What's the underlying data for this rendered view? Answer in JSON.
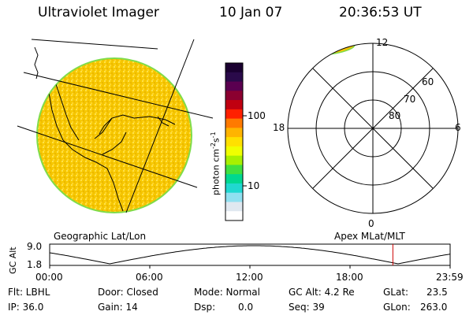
{
  "header": {
    "title": "Ultraviolet Imager",
    "date": "10 Jan 07",
    "time": "20:36:53 UT"
  },
  "colorbar": {
    "unit_label": "photon cm",
    "unit_sup1": "-2",
    "unit_mid": "s",
    "unit_sup2": "-1",
    "ticks": [
      "100",
      "10"
    ],
    "colors": [
      "#1a0030",
      "#2a0a4a",
      "#5a0050",
      "#8b0030",
      "#c00010",
      "#ff2000",
      "#ff7a00",
      "#ffb400",
      "#ffe000",
      "#f0ff00",
      "#a8f000",
      "#40e040",
      "#00d890",
      "#20d8d0",
      "#90e0f0",
      "#e0e8f0",
      "#ffffff"
    ]
  },
  "left_panel": {
    "label": "Geographic Lat/Lon",
    "image_color": "#f5c400"
  },
  "right_panel": {
    "label": "Apex MLat/MLT",
    "mlt_labels": {
      "top": "12",
      "left": "18",
      "right": "6",
      "bottom": "0"
    },
    "lat_labels": [
      "60",
      "70",
      "80"
    ]
  },
  "timeline": {
    "ylabel_top": "GC",
    "ylabel_bottom": "Alt",
    "ymax": "9.0",
    "ymin": "1.8",
    "ticks": [
      "00:00",
      "06:00",
      "12:00",
      "18:00",
      "23:59"
    ],
    "current_time_fraction": 0.857,
    "marker_color": "#cc0000"
  },
  "footer": {
    "filter": "Flt: LBHL",
    "ip": "IP: 36.0",
    "door": "Door: Closed",
    "gain": "Gain: 14",
    "mode": "Mode: Normal",
    "dsp_label": "Dsp:",
    "dsp_value": "0.0",
    "gc_alt": "GC Alt: 4.2 Re",
    "seq": "Seq: 39",
    "glat_label": "GLat:",
    "glat_value": "23.5",
    "glon_label": "GLon:",
    "glon_value": "263.0"
  }
}
